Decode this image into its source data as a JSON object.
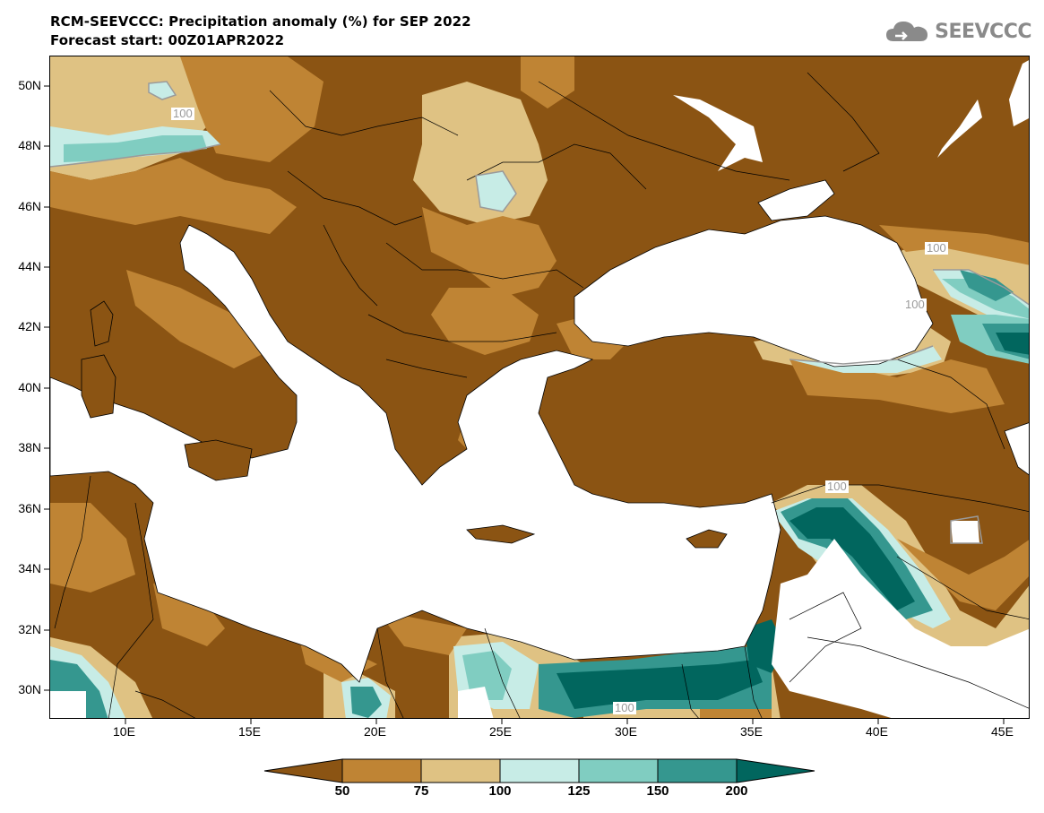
{
  "header": {
    "title_line1": "RCM-SEEVCCC: Precipitation anomaly (%) for SEP 2022",
    "title_line2": "Forecast start: 00Z01APR2022",
    "logo_text": "SEEVCCC"
  },
  "map": {
    "x_ticks": [
      "10E",
      "15E",
      "20E",
      "25E",
      "30E",
      "35E",
      "40E",
      "45E"
    ],
    "y_ticks": [
      "50N",
      "48N",
      "46N",
      "44N",
      "42N",
      "40N",
      "38N",
      "36N",
      "34N",
      "32N",
      "30N"
    ],
    "contour_labels": [
      "100",
      "100",
      "100",
      "100",
      "100"
    ]
  },
  "colorbar": {
    "labels": [
      "50",
      "75",
      "100",
      "125",
      "150",
      "200"
    ],
    "colors": [
      "#8b5413",
      "#bf8434",
      "#dfc283",
      "#c7ece6",
      "#80cdc1",
      "#35978f",
      "#01665e"
    ]
  },
  "colors": {
    "land_base": "#8b5413",
    "sea": "#ffffff"
  }
}
